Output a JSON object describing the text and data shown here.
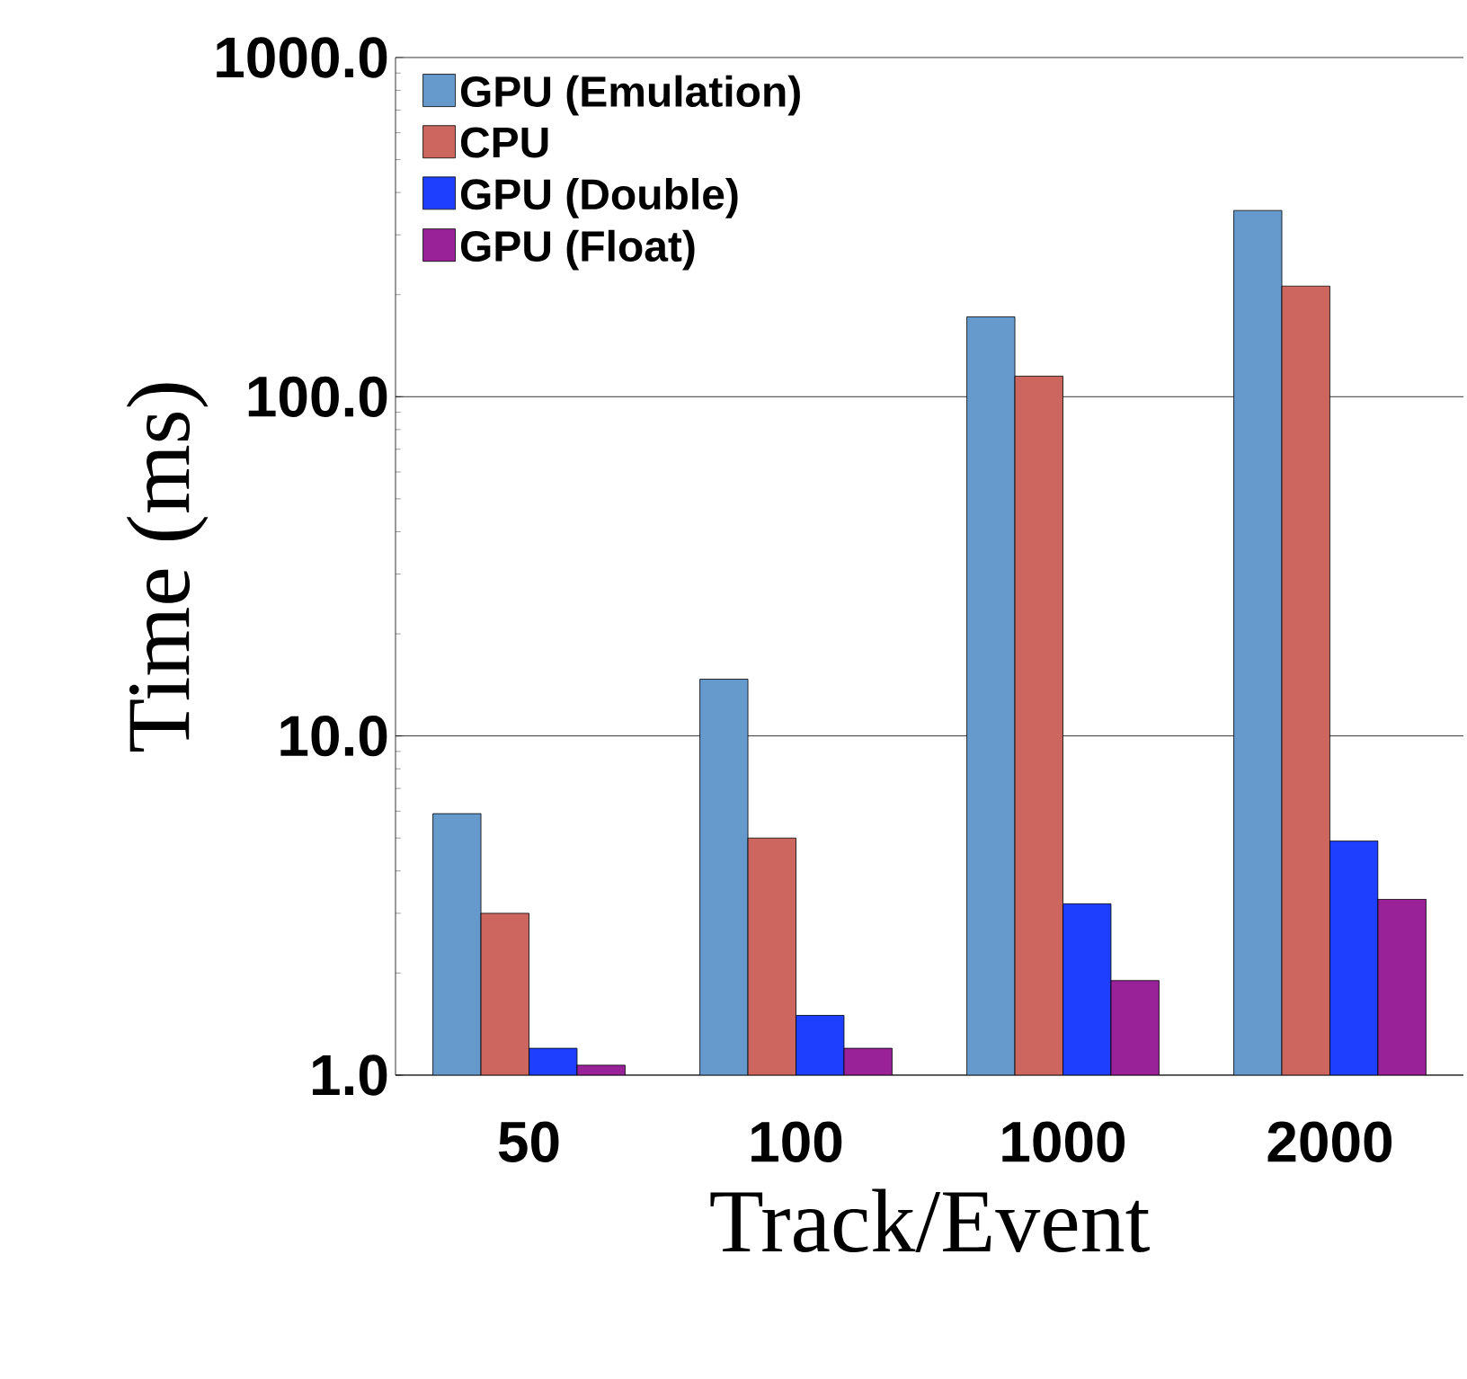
{
  "chart_data": {
    "type": "bar",
    "xlabel": "Track/Event",
    "ylabel": "Time (ms)",
    "categories": [
      "50",
      "100",
      "1000",
      "2000"
    ],
    "series": [
      {
        "name": "GPU (Emulation)",
        "color": "#6699cc",
        "values": [
          5.9,
          14.7,
          172,
          354
        ]
      },
      {
        "name": "CPU",
        "color": "#cc665e",
        "values": [
          3.0,
          5.0,
          115,
          212
        ]
      },
      {
        "name": "GPU (Double)",
        "color": "#1f3fff",
        "values": [
          1.2,
          1.5,
          3.2,
          4.9
        ]
      },
      {
        "name": "GPU (Float)",
        "color": "#992299",
        "values": [
          1.07,
          1.2,
          1.9,
          3.3
        ]
      }
    ],
    "log": "y",
    "ylim": [
      1,
      1000
    ],
    "yticks": [
      {
        "value": 1,
        "label": "1.0"
      },
      {
        "value": 10,
        "label": "10.0"
      },
      {
        "value": 100,
        "label": "100.0"
      },
      {
        "value": 1000,
        "label": "1000.0"
      }
    ],
    "grid": "y",
    "legend": "top left"
  }
}
